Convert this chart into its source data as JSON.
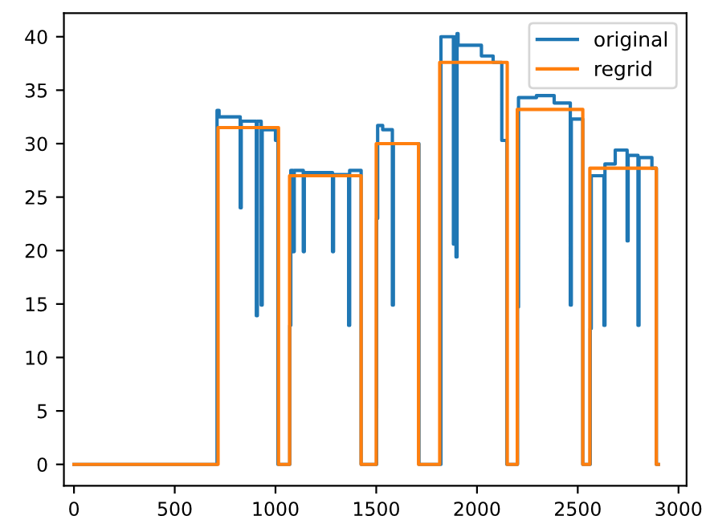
{
  "chart_data": {
    "type": "step",
    "xlim": [
      -50,
      3040
    ],
    "ylim": [
      -2.0,
      42.2
    ],
    "xticks": [
      0,
      500,
      1000,
      1500,
      2000,
      2500,
      3000
    ],
    "yticks": [
      0,
      5,
      10,
      15,
      20,
      25,
      30,
      35,
      40
    ],
    "grid": false,
    "legend": "top right",
    "series": [
      {
        "name": "original",
        "color": "#1f77b4",
        "x": [
          0,
          710,
          720,
          825,
          830,
          905,
          910,
          929,
          934,
          1000,
          1012,
          1071,
          1076,
          1088,
          1093,
          1138,
          1143,
          1283,
          1288,
          1363,
          1368,
          1425,
          1502,
          1507,
          1532,
          1580,
          1585,
          1712,
          1821,
          1883,
          1888,
          1896,
          1901,
          1906,
          2022,
          2080,
          2123,
          2148,
          2201,
          2206,
          2295,
          2383,
          2463,
          2468,
          2525,
          2562,
          2567,
          2630,
          2635,
          2686,
          2745,
          2750,
          2799,
          2804,
          2868,
          2890,
          2900
        ],
        "values": [
          0,
          33.1,
          32.5,
          24.0,
          32.1,
          13.9,
          32.1,
          14.9,
          31.3,
          30.3,
          0,
          13.0,
          27.5,
          19.9,
          27.5,
          19.9,
          27.3,
          19.9,
          27.1,
          13.0,
          27.5,
          0,
          23.0,
          31.7,
          31.3,
          14.9,
          30.0,
          0,
          40.0,
          20.6,
          40.0,
          19.4,
          40.3,
          39.2,
          38.2,
          37.6,
          30.3,
          0,
          14.7,
          34.3,
          34.5,
          33.8,
          14.9,
          32.3,
          0,
          12.7,
          27.0,
          13.0,
          28.1,
          29.4,
          20.9,
          28.9,
          13.0,
          28.7,
          27.7,
          0,
          0
        ]
      },
      {
        "name": "regrid",
        "color": "#ff7f0e",
        "x": [
          0,
          715,
          1015,
          1070,
          1425,
          1500,
          1710,
          1815,
          2150,
          2200,
          2525,
          2560,
          2890,
          2900
        ],
        "values": [
          0,
          31.5,
          0,
          27.0,
          0,
          30.0,
          0,
          37.6,
          0,
          33.2,
          0,
          27.7,
          0,
          0
        ]
      }
    ]
  }
}
